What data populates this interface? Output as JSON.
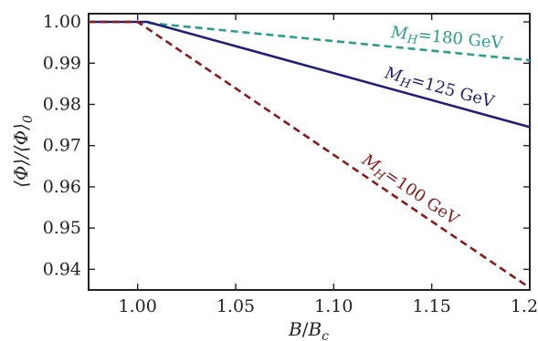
{
  "chart_data": {
    "type": "line",
    "xlabel_parts": [
      "B",
      "/",
      "B",
      "c"
    ],
    "ylabel": "⟨Φ⟩/⟨Φ⟩",
    "ylabel_sub": "0",
    "xlim": [
      0.975,
      1.2
    ],
    "ylim": [
      0.935,
      1.002
    ],
    "x_ticks": [
      1.0,
      1.05,
      1.1,
      1.15,
      1.2
    ],
    "x_tick_labels": [
      "1.00",
      "1.05",
      "1.10",
      "1.15",
      "1.20"
    ],
    "y_ticks": [
      0.94,
      0.95,
      0.96,
      0.97,
      0.98,
      0.99,
      1.0
    ],
    "y_tick_labels": [
      "0.94",
      "0.95",
      "0.96",
      "0.97",
      "0.98",
      "0.99",
      "1.00"
    ],
    "grid": false,
    "series": [
      {
        "name": "M_H=180 GeV",
        "label_parts": [
          "M",
          "H",
          "=180 GeV"
        ],
        "color": "#2a9d8f",
        "dash": "dashed",
        "x": [
          0.975,
          1.0,
          1.2
        ],
        "y": [
          1.0,
          1.0,
          0.9907
        ]
      },
      {
        "name": "M_H=125 GeV",
        "label_parts": [
          "M",
          "H",
          "=125 GeV"
        ],
        "color": "#1f1f7a",
        "dash": "solid",
        "x": [
          0.975,
          1.005,
          1.2
        ],
        "y": [
          1.0,
          1.0,
          0.9745
        ]
      },
      {
        "name": "M_H=100 GeV",
        "label_parts": [
          "M",
          "H",
          "=100 GeV"
        ],
        "color": "#8b1a1a",
        "dash": "dashed",
        "x": [
          0.975,
          1.0,
          1.2
        ],
        "y": [
          1.0,
          1.0,
          0.9355
        ]
      }
    ]
  }
}
